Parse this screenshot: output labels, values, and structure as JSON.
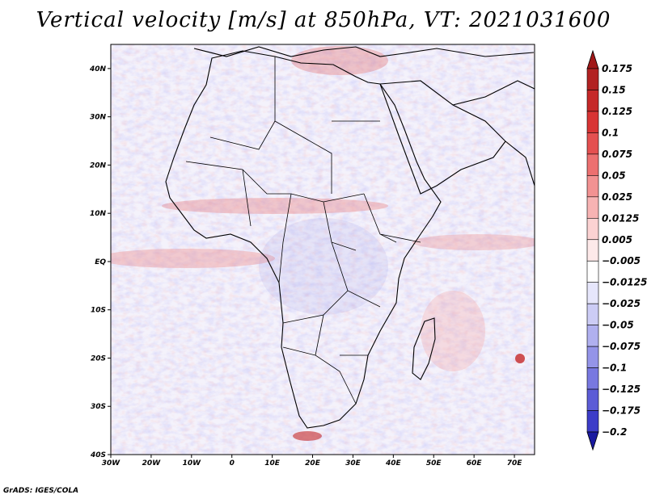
{
  "title": "Vertical velocity [m/s] at 850hPa, VT: 2021031600",
  "credit": "GrADS: IGES/COLA",
  "map": {
    "lon_range": [
      -30,
      75
    ],
    "lat_range": [
      -40,
      45
    ],
    "lat_ticks": [
      {
        "value": 40,
        "label": "40N"
      },
      {
        "value": 30,
        "label": "30N"
      },
      {
        "value": 20,
        "label": "20N"
      },
      {
        "value": 10,
        "label": "10N"
      },
      {
        "value": 0,
        "label": "EQ"
      },
      {
        "value": -10,
        "label": "10S"
      },
      {
        "value": -20,
        "label": "20S"
      },
      {
        "value": -30,
        "label": "30S"
      },
      {
        "value": -40,
        "label": "40S"
      }
    ],
    "lon_ticks": [
      {
        "value": -30,
        "label": "30W"
      },
      {
        "value": -20,
        "label": "20W"
      },
      {
        "value": -10,
        "label": "10W"
      },
      {
        "value": 0,
        "label": "0"
      },
      {
        "value": 10,
        "label": "10E"
      },
      {
        "value": 20,
        "label": "20E"
      },
      {
        "value": 30,
        "label": "30E"
      },
      {
        "value": 40,
        "label": "40E"
      },
      {
        "value": 50,
        "label": "50E"
      },
      {
        "value": 60,
        "label": "60E"
      },
      {
        "value": 70,
        "label": "70E"
      }
    ]
  },
  "colorbar": {
    "levels": [
      {
        "label": "0.175",
        "color": "#b22222"
      },
      {
        "label": "0.15",
        "color": "#c52828"
      },
      {
        "label": "0.125",
        "color": "#d83434"
      },
      {
        "label": "0.1",
        "color": "#e45050"
      },
      {
        "label": "0.075",
        "color": "#ec7070"
      },
      {
        "label": "0.05",
        "color": "#f29292"
      },
      {
        "label": "0.025",
        "color": "#f7b3b3"
      },
      {
        "label": "0.0125",
        "color": "#fbd2d2"
      },
      {
        "label": "0.005",
        "color": "#fde9e9"
      },
      {
        "label": "−0.005",
        "color": "#ffffff"
      },
      {
        "label": "−0.0125",
        "color": "#e6e6fb"
      },
      {
        "label": "−0.025",
        "color": "#ccccf5"
      },
      {
        "label": "−0.05",
        "color": "#b0b0ef"
      },
      {
        "label": "−0.075",
        "color": "#9494e8"
      },
      {
        "label": "−0.1",
        "color": "#7878e0"
      },
      {
        "label": "−0.125",
        "color": "#5c5cd6"
      },
      {
        "label": "−0.175",
        "color": "#3c3cc8"
      },
      {
        "label": "−0.2",
        "color": "#2020b0"
      }
    ],
    "top_color": "#a01818",
    "bottom_color": "#1a1aa0"
  }
}
